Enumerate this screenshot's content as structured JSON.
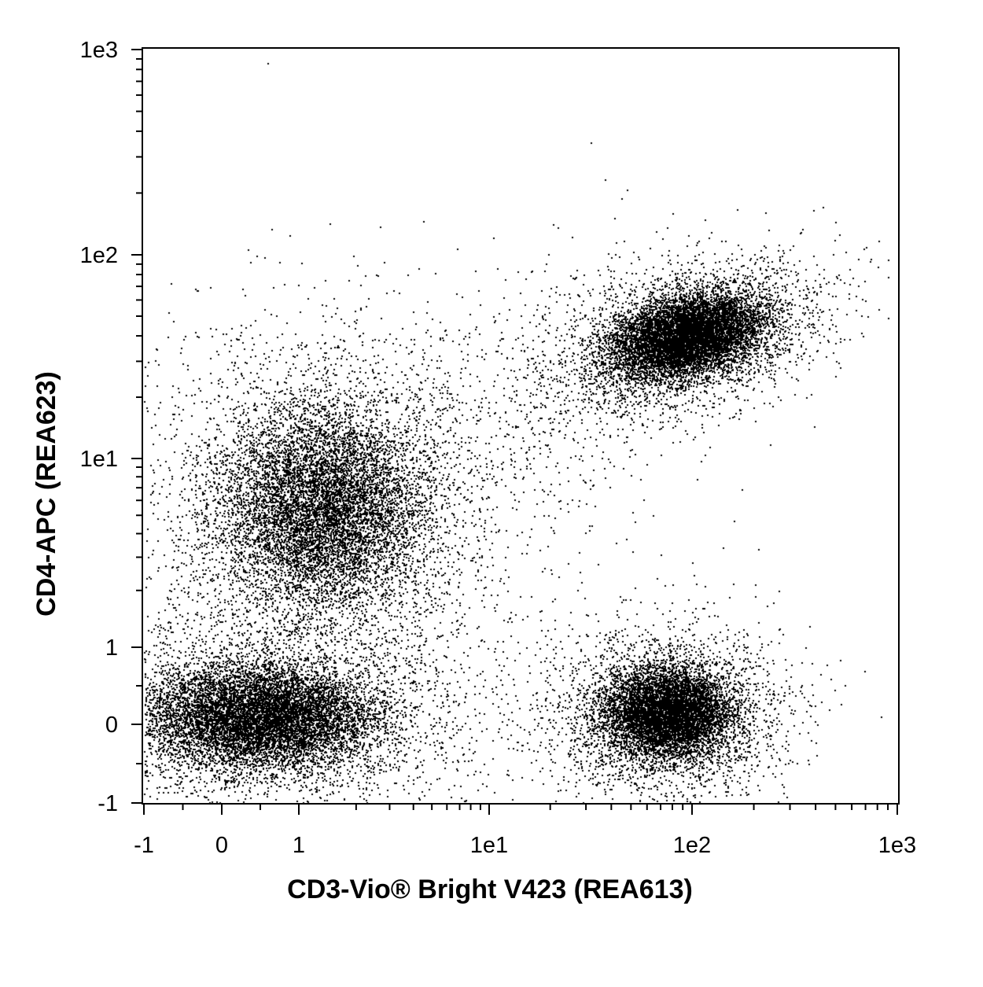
{
  "chart_data": {
    "type": "scatter",
    "scale": "biexponential (linear near zero, log above ~1)",
    "xlabel": "CD3-Vio® Bright V423 (REA613)",
    "ylabel": "CD4-APC (REA623)",
    "xlim": [
      -1,
      1000
    ],
    "ylim": [
      -1,
      1000
    ],
    "x_ticks": [
      {
        "value": -1,
        "label": "-1"
      },
      {
        "value": 0,
        "label": "0"
      },
      {
        "value": 1,
        "label": "1"
      },
      {
        "value": 10,
        "label": "1e1"
      },
      {
        "value": 100,
        "label": "1e2"
      },
      {
        "value": 1000,
        "label": "1e3"
      }
    ],
    "y_ticks": [
      {
        "value": -1,
        "label": "-1"
      },
      {
        "value": 0,
        "label": "0"
      },
      {
        "value": 1,
        "label": "1"
      },
      {
        "value": 10,
        "label": "1e1"
      },
      {
        "value": 100,
        "label": "1e2"
      },
      {
        "value": 1000,
        "label": "1e3"
      }
    ],
    "populations": [
      {
        "center_x": 0.5,
        "center_y": 0.1,
        "relative_density": 1.0
      },
      {
        "center_x": 1.3,
        "center_y": 5.5,
        "relative_density": 0.85
      },
      {
        "center_x": 95,
        "center_y": 40,
        "relative_density": 0.7
      },
      {
        "center_x": 75,
        "center_y": 0.15,
        "relative_density": 0.45
      }
    ],
    "point_color": "#000000",
    "grid": false,
    "legend": "none"
  }
}
